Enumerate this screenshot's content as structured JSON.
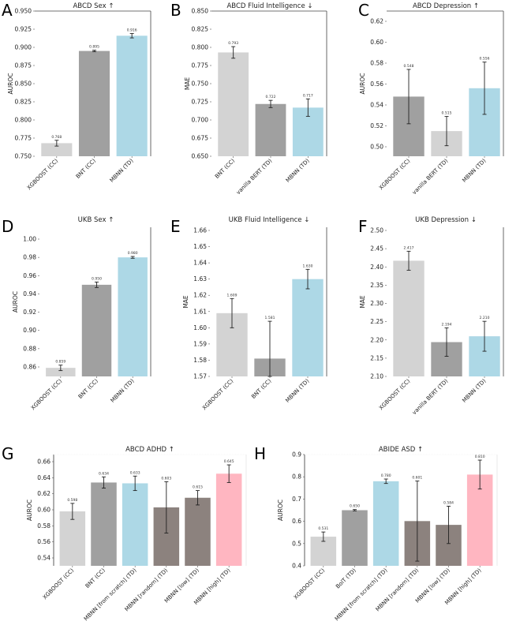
{
  "figure": {
    "panels": [
      "A",
      "B",
      "C",
      "D",
      "E",
      "F",
      "G",
      "H"
    ]
  },
  "colors": {
    "light_gray": "#d3d3d3",
    "mid_gray": "#a0a0a0",
    "light_blue": "#add8e6",
    "taupe": "#8c827e",
    "pink": "#ffb6c1",
    "error_bar": "#222222"
  },
  "chart_data": [
    {
      "panel": "A",
      "type": "bar",
      "title": "ABCD Sex ↑",
      "ylabel": "AUROC",
      "xlabel": "",
      "ylim": [
        0.75,
        0.95
      ],
      "yticks": [
        "0.750",
        "0.775",
        "0.800",
        "0.825",
        "0.850",
        "0.875",
        "0.900",
        "0.925",
        "0.950"
      ],
      "categories": [
        "XGBOOST (CC)",
        "BNT (CC)",
        "MBNN (TD)"
      ],
      "values": [
        0.768,
        0.895,
        0.916
      ],
      "value_labels": [
        "0.768",
        "0.895",
        "0.916"
      ],
      "errors": [
        0.004,
        0.001,
        0.003
      ],
      "colors": [
        "light_gray",
        "mid_gray",
        "light_blue"
      ]
    },
    {
      "panel": "B",
      "type": "bar",
      "title": "ABCD Fluid Intelligence ↓",
      "ylabel": "MAE",
      "xlabel": "",
      "ylim": [
        0.65,
        0.85
      ],
      "yticks": [
        "0.650",
        "0.675",
        "0.700",
        "0.725",
        "0.750",
        "0.775",
        "0.800",
        "0.825",
        "0.850"
      ],
      "categories": [
        "BNT (CC)",
        "vanilla BERT (TD)",
        "MBNN (TD)"
      ],
      "values": [
        0.793,
        0.722,
        0.717
      ],
      "value_labels": [
        "0.793",
        "0.722",
        "0.717"
      ],
      "errors": [
        0.008,
        0.005,
        0.012
      ],
      "colors": [
        "light_gray",
        "mid_gray",
        "light_blue"
      ]
    },
    {
      "panel": "C",
      "type": "bar",
      "title": "ABCD Depression ↑",
      "ylabel": "AUROC",
      "xlabel": "",
      "ylim": [
        0.49,
        0.63
      ],
      "yticks": [
        "0.50",
        "0.52",
        "0.54",
        "0.56",
        "0.58",
        "0.60",
        "0.62"
      ],
      "categories": [
        "XGBOOST (CC)",
        "vanilla BERT (TD)",
        "MBNN (TD)"
      ],
      "values": [
        0.548,
        0.515,
        0.556
      ],
      "value_labels": [
        "0.548",
        "0.515",
        "0.556"
      ],
      "errors": [
        0.026,
        0.014,
        0.025
      ],
      "colors": [
        "mid_gray",
        "light_gray",
        "light_blue"
      ]
    },
    {
      "panel": "D",
      "type": "bar",
      "title": "UKB Sex ↑",
      "ylabel": "AUROC",
      "xlabel": "",
      "ylim": [
        0.85,
        1.01
      ],
      "yticks": [
        "0.86",
        "0.88",
        "0.90",
        "0.92",
        "0.94",
        "0.96",
        "0.98",
        "1.00"
      ],
      "categories": [
        "XGBOOST (CC)",
        "BNT (CC)",
        "MBNN (TD)"
      ],
      "values": [
        0.859,
        0.95,
        0.98
      ],
      "value_labels": [
        "0.859",
        "0.950",
        "0.980"
      ],
      "errors": [
        0.003,
        0.003,
        0.001
      ],
      "colors": [
        "light_gray",
        "mid_gray",
        "light_blue"
      ]
    },
    {
      "panel": "E",
      "type": "bar",
      "title": "UKB Fluid Intelligence ↓",
      "ylabel": "MAE",
      "xlabel": "",
      "ylim": [
        1.57,
        1.66
      ],
      "yticks": [
        "1.57",
        "1.58",
        "1.59",
        "1.60",
        "1.61",
        "1.62",
        "1.63",
        "1.64",
        "1.65",
        "1.66"
      ],
      "categories": [
        "XGBOOST (CC)",
        "BNT (CC)",
        "MBNN (TD)"
      ],
      "values": [
        1.609,
        1.581,
        1.63
      ],
      "value_labels": [
        "1.609",
        "1.581",
        "1.630"
      ],
      "errors": [
        0.009,
        0.023,
        0.006
      ],
      "colors": [
        "light_gray",
        "mid_gray",
        "light_blue"
      ]
    },
    {
      "panel": "F",
      "type": "bar",
      "title": "UKB Depression ↓",
      "ylabel": "MAE",
      "xlabel": "",
      "ylim": [
        2.1,
        2.5
      ],
      "yticks": [
        "2.10",
        "2.15",
        "2.20",
        "2.25",
        "2.30",
        "2.35",
        "2.40",
        "2.45",
        "2.50"
      ],
      "categories": [
        "XGBOOST (CC)",
        "vanilla BERT (TD)",
        "MBNN (TD)"
      ],
      "values": [
        2.417,
        2.194,
        2.21
      ],
      "value_labels": [
        "2.417",
        "2.194",
        "2.210"
      ],
      "errors": [
        0.026,
        0.039,
        0.041
      ],
      "colors": [
        "light_gray",
        "mid_gray",
        "light_blue"
      ]
    },
    {
      "panel": "G",
      "type": "bar",
      "title": "ABCD ADHD ↑",
      "ylabel": "AUROC",
      "xlabel": "",
      "ylim": [
        0.53,
        0.67
      ],
      "yticks": [
        "0.54",
        "0.56",
        "0.58",
        "0.60",
        "0.62",
        "0.64",
        "0.66"
      ],
      "categories": [
        "XGBOOST (CC)",
        "BNT (CC)",
        "MBNN [from scratch] (TD)",
        "MBNN [random] (TD)",
        "MBNN [low] (TD)",
        "MBNN [high] (TD)"
      ],
      "values": [
        0.598,
        0.634,
        0.633,
        0.603,
        0.615,
        0.645
      ],
      "value_labels": [
        "0.598",
        "0.634",
        "0.633",
        "0.603",
        "0.615",
        "0.645"
      ],
      "errors": [
        0.01,
        0.007,
        0.009,
        0.032,
        0.009,
        0.011
      ],
      "colors": [
        "light_gray",
        "mid_gray",
        "light_blue",
        "taupe",
        "taupe",
        "pink"
      ]
    },
    {
      "panel": "H",
      "type": "bar",
      "title": "ABIDE ASD ↑",
      "ylabel": "AUROC",
      "xlabel": "",
      "ylim": [
        0.4,
        0.9
      ],
      "yticks": [
        "0.4",
        "0.5",
        "0.6",
        "0.7",
        "0.8",
        "0.9"
      ],
      "categories": [
        "XGBOOST (CC)",
        "BolT (TD)",
        "MBNN [from scratch] (TD)",
        "MBNN [random] (TD)",
        "MBNN [low] (TD)",
        "MBNN [high] (TD)"
      ],
      "values": [
        0.531,
        0.65,
        0.78,
        0.601,
        0.584,
        0.81
      ],
      "value_labels": [
        "0.531",
        "0.650",
        "0.780",
        "0.601",
        "0.584",
        "0.810"
      ],
      "errors": [
        0.021,
        0.003,
        0.01,
        0.18,
        0.084,
        0.065
      ],
      "colors": [
        "light_gray",
        "mid_gray",
        "light_blue",
        "taupe",
        "taupe",
        "pink"
      ]
    }
  ]
}
